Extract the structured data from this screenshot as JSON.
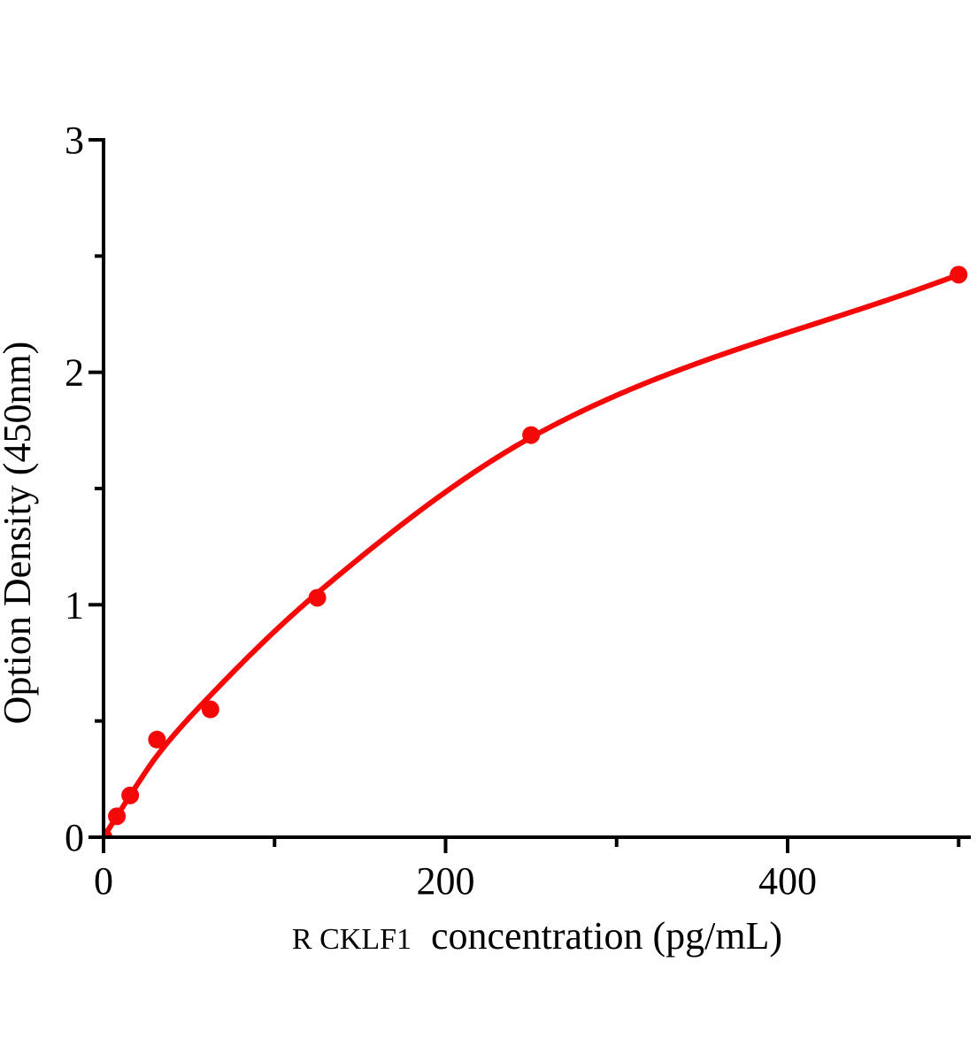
{
  "figure_title": "",
  "chart_data": {
    "type": "scatter",
    "title": "",
    "xlabel": "R CKLF1  concentration（pg/mL）",
    "xlabel_parts": {
      "prefix": "R CKLF1",
      "main": "concentration（pg/mL）"
    },
    "ylabel": "Option Density（450nm）",
    "series": [
      {
        "name": "standard-curve-points",
        "x": [
          0,
          7.8,
          15.6,
          31.25,
          62.5,
          125,
          250,
          500
        ],
        "y": [
          0,
          0.09,
          0.18,
          0.42,
          0.55,
          1.03,
          1.73,
          2.42
        ]
      }
    ],
    "fit_curve": {
      "type": "smooth-fit",
      "anchors_x": [
        0,
        7.8,
        15.6,
        31.25,
        62.5,
        125,
        250,
        500
      ],
      "anchors_y": [
        0,
        0.09,
        0.18,
        0.35,
        0.61,
        1.05,
        1.72,
        2.42
      ]
    },
    "xlim": [
      0,
      508
    ],
    "ylim": [
      0,
      3
    ],
    "x_major_ticks": [
      0,
      200,
      400
    ],
    "x_minor_ticks": [
      100,
      300,
      500
    ],
    "y_major_ticks": [
      0,
      1,
      2,
      3
    ],
    "y_minor_ticks": [
      0.5,
      1.5,
      2.5
    ],
    "grid": false,
    "legend": null,
    "colors": {
      "marker": "#f40808",
      "curve": "#f40808",
      "axis": "#000000",
      "text": "#000000",
      "background": "#ffffff"
    }
  }
}
